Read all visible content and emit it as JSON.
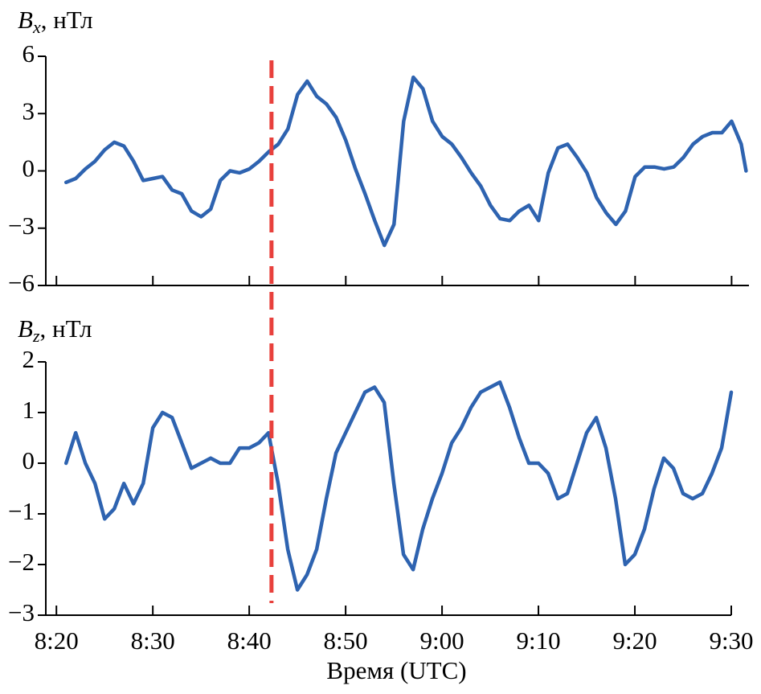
{
  "chart_data": [
    {
      "type": "line",
      "ylabel": [
        "B",
        "x",
        ", нТл"
      ],
      "x": [
        501,
        502,
        503,
        504,
        505,
        506,
        507,
        508,
        509,
        510,
        511,
        512,
        513,
        514,
        515,
        516,
        517,
        518,
        519,
        520,
        521,
        522,
        523,
        524,
        525,
        526,
        527,
        528,
        529,
        530,
        531,
        532,
        533,
        534,
        535,
        536,
        537,
        538,
        539,
        540,
        541,
        542,
        543,
        544,
        545,
        546,
        547,
        548,
        549,
        550,
        551,
        552,
        553,
        554,
        555,
        556,
        557,
        558,
        559,
        560,
        561,
        562,
        563,
        564,
        565,
        566,
        567,
        568,
        569,
        570,
        571,
        571.5
      ],
      "series": [
        {
          "name": "Bx",
          "color": "#2e63b0",
          "values": [
            -0.6,
            -0.4,
            0.1,
            0.5,
            1.1,
            1.5,
            1.3,
            0.5,
            -0.5,
            -0.4,
            -0.3,
            -1.0,
            -1.2,
            -2.1,
            -2.4,
            -2.0,
            -0.5,
            0,
            -0.1,
            0.1,
            0.5,
            1.0,
            1.4,
            2.2,
            4.0,
            4.7,
            3.9,
            3.5,
            2.8,
            1.6,
            0.1,
            -1.2,
            -2.6,
            -3.9,
            -2.8,
            2.6,
            4.9,
            4.3,
            2.6,
            1.8,
            1.4,
            0.7,
            -0.1,
            -0.8,
            -1.8,
            -2.5,
            -2.6,
            -2.1,
            -1.8,
            -2.6,
            -0.1,
            1.2,
            1.4,
            0.7,
            -0.1,
            -1.4,
            -2.2,
            -2.8,
            -2.1,
            -0.3,
            0.2,
            0.2,
            0.1,
            0.2,
            0.7,
            1.4,
            1.8,
            2.0,
            2.0,
            2.6,
            1.4,
            0
          ]
        }
      ],
      "xlim": [
        498.9,
        571.8
      ],
      "xticks": [
        500,
        510,
        520,
        530,
        540,
        550,
        560,
        570
      ],
      "ylim": [
        -6,
        6
      ],
      "yticks": [
        6,
        3,
        0,
        {
          "value": -3,
          "label": "−3"
        },
        {
          "value": -6,
          "label": "−6"
        }
      ],
      "vline": {
        "x": 522.3,
        "color": "#e8403c"
      }
    },
    {
      "type": "line",
      "ylabel": [
        "B",
        "z",
        ", нТл"
      ],
      "xlabel": "Время (UTC)",
      "x": [
        501,
        502,
        503,
        504,
        505,
        506,
        507,
        508,
        509,
        510,
        511,
        512,
        513,
        514,
        515,
        516,
        517,
        518,
        519,
        520,
        521,
        522,
        523,
        524,
        525,
        526,
        527,
        528,
        529,
        530,
        531,
        532,
        533,
        534,
        535,
        536,
        537,
        538,
        539,
        540,
        541,
        542,
        543,
        544,
        545,
        546,
        547,
        548,
        549,
        550,
        551,
        552,
        553,
        554,
        555,
        556,
        557,
        558,
        559,
        560,
        561,
        562,
        563,
        564,
        565,
        566,
        567,
        568,
        569,
        570
      ],
      "series": [
        {
          "name": "Bz",
          "color": "#2e63b0",
          "values": [
            0,
            0.6,
            0,
            -0.4,
            -1.1,
            -0.9,
            -0.4,
            -0.8,
            -0.4,
            0.7,
            1.0,
            0.9,
            0.4,
            -0.1,
            0,
            0.1,
            0,
            0,
            0.3,
            0.3,
            0.4,
            0.6,
            -0.4,
            -1.7,
            -2.5,
            -2.2,
            -1.7,
            -0.7,
            0.2,
            0.6,
            1.0,
            1.4,
            1.5,
            1.2,
            -0.4,
            -1.8,
            -2.1,
            -1.3,
            -0.7,
            -0.2,
            0.4,
            0.7,
            1.1,
            1.4,
            1.5,
            1.6,
            1.1,
            0.5,
            0,
            0,
            -0.2,
            -0.7,
            -0.6,
            0,
            0.6,
            0.9,
            0.3,
            -0.7,
            -2.0,
            -1.8,
            -1.3,
            -0.5,
            0.1,
            -0.1,
            -0.6,
            -0.7,
            -0.6,
            -0.2,
            0.3,
            1.4
          ]
        }
      ],
      "xlim": [
        498.9,
        570
      ],
      "xticks": [
        {
          "value": 500,
          "label": "8:20"
        },
        {
          "value": 510,
          "label": "8:30"
        },
        {
          "value": 520,
          "label": "8:40"
        },
        {
          "value": 530,
          "label": "8:50"
        },
        {
          "value": 540,
          "label": "9:00"
        },
        {
          "value": 550,
          "label": "9:10"
        },
        {
          "value": 560,
          "label": "9:20"
        },
        {
          "value": 570,
          "label": "9:30"
        }
      ],
      "ylim": [
        -3,
        2
      ],
      "yticks": [
        2,
        1,
        0,
        {
          "value": -1,
          "label": "−1"
        },
        {
          "value": -2,
          "label": "−2"
        },
        {
          "value": -3,
          "label": "−3"
        }
      ]
    }
  ]
}
